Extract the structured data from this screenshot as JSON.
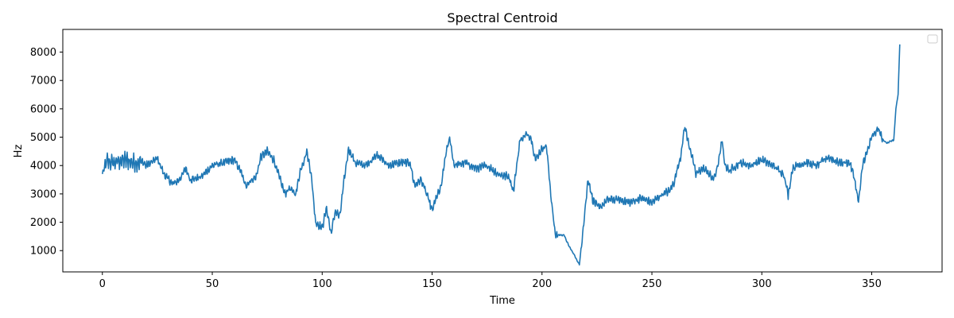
{
  "chart_data": {
    "type": "line",
    "title": "Spectral Centroid",
    "xlabel": "Time",
    "ylabel": "Hz",
    "xlim": [
      -18,
      382
    ],
    "ylim": [
      250,
      8800
    ],
    "xticks": [
      0,
      50,
      100,
      150,
      200,
      250,
      300,
      350
    ],
    "yticks": [
      1000,
      2000,
      3000,
      4000,
      5000,
      6000,
      7000,
      8000
    ],
    "grid": false,
    "legend": {
      "placement": "top-right",
      "entries": []
    },
    "colors": {
      "line": "#1f77b4",
      "axes": "#000000",
      "background": "#ffffff"
    },
    "series": [
      {
        "name": "",
        "x": [
          0,
          2,
          5,
          10,
          15,
          18,
          20,
          25,
          28,
          32,
          35,
          38,
          40,
          45,
          50,
          55,
          60,
          63,
          65,
          68,
          70,
          72,
          75,
          78,
          80,
          83,
          85,
          88,
          90,
          93,
          95,
          97,
          100,
          102,
          104,
          106,
          108,
          110,
          112,
          115,
          120,
          125,
          130,
          135,
          140,
          142,
          145,
          148,
          150,
          152,
          154,
          156,
          158,
          160,
          165,
          170,
          175,
          180,
          185,
          187,
          190,
          193,
          195,
          197,
          200,
          202,
          204,
          206,
          210,
          212,
          215,
          217,
          219,
          221,
          223,
          226,
          230,
          235,
          240,
          245,
          250,
          255,
          258,
          260,
          263,
          265,
          266,
          268,
          270,
          273,
          275,
          278,
          280,
          282,
          283,
          285,
          290,
          295,
          300,
          305,
          310,
          312,
          314,
          316,
          320,
          325,
          330,
          335,
          340,
          342,
          344,
          346,
          348,
          350,
          353,
          355,
          357,
          360,
          361,
          362,
          362.8
        ],
        "values": [
          3650,
          4150,
          4100,
          4200,
          4100,
          4150,
          4000,
          4250,
          3700,
          3350,
          3500,
          3900,
          3500,
          3600,
          4000,
          4100,
          4200,
          3800,
          3300,
          3500,
          3600,
          4300,
          4500,
          4200,
          3700,
          3000,
          3200,
          3000,
          3800,
          4500,
          3700,
          2000,
          1800,
          2500,
          1600,
          2400,
          2200,
          3500,
          4600,
          4100,
          4000,
          4400,
          4000,
          4100,
          4100,
          3300,
          3500,
          2900,
          2400,
          2900,
          3200,
          4300,
          5000,
          4000,
          4100,
          3900,
          4000,
          3700,
          3600,
          3100,
          4900,
          5100,
          5000,
          4200,
          4600,
          4700,
          3000,
          1550,
          1550,
          1200,
          800,
          500,
          2000,
          3550,
          2800,
          2500,
          2800,
          2800,
          2700,
          2850,
          2700,
          3000,
          3100,
          3400,
          4300,
          5400,
          5000,
          4400,
          3700,
          3900,
          3800,
          3500,
          4000,
          4900,
          4100,
          3800,
          4100,
          4000,
          4200,
          4000,
          3700,
          2950,
          3900,
          4000,
          4100,
          4000,
          4300,
          4100,
          4100,
          3600,
          2700,
          4100,
          4500,
          5000,
          5300,
          4900,
          4800,
          4900,
          6000,
          6500,
          8400
        ]
      }
    ]
  }
}
